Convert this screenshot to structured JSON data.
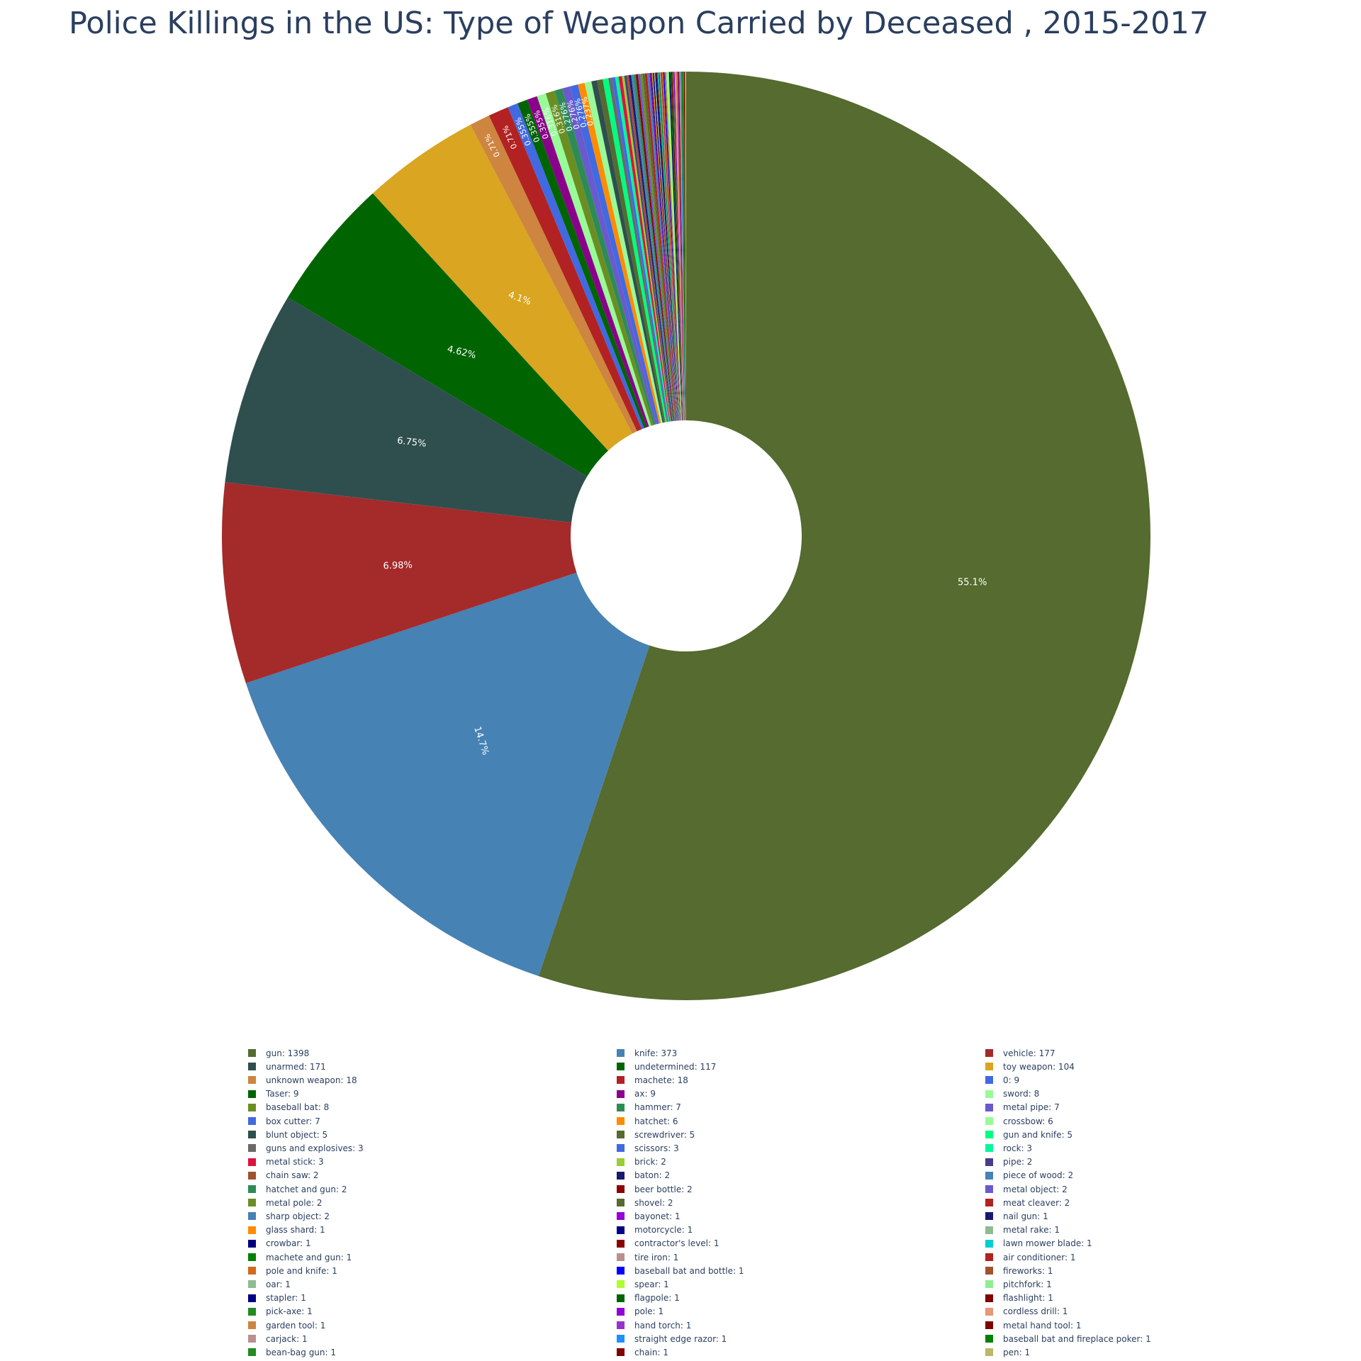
{
  "chart_data": {
    "type": "pie",
    "hole": true,
    "title": "Police Killings in the US: Type of Weapon Carried by Deceased , 2015-2017",
    "legend_position": "bottom",
    "slices": [
      {
        "label": "gun",
        "value": 1398,
        "color": "#556b2f",
        "pct_label": "55.1%"
      },
      {
        "label": "knife",
        "value": 373,
        "color": "#4682b4",
        "pct_label": "14.7%"
      },
      {
        "label": "vehicle",
        "value": 177,
        "color": "#a52a2a",
        "pct_label": "6.98%"
      },
      {
        "label": "unarmed",
        "value": 171,
        "color": "#2f4f4f",
        "pct_label": "6.75%"
      },
      {
        "label": "undetermined",
        "value": 117,
        "color": "#006400",
        "pct_label": "4.62%"
      },
      {
        "label": "toy weapon",
        "value": 104,
        "color": "#daa520",
        "pct_label": "4.1%"
      },
      {
        "label": "unknown weapon",
        "value": 18,
        "color": "#cd853f",
        "pct_label": "0.71%"
      },
      {
        "label": "machete",
        "value": 18,
        "color": "#b22222",
        "pct_label": "0.71%"
      },
      {
        "label": "0",
        "value": 9,
        "color": "#4169e1",
        "pct_label": "0.355%"
      },
      {
        "label": "Taser",
        "value": 9,
        "color": "#006400",
        "pct_label": "0.355%"
      },
      {
        "label": "ax",
        "value": 9,
        "color": "#8b008b",
        "pct_label": "0.355%"
      },
      {
        "label": "sword",
        "value": 8,
        "color": "#98fb98",
        "pct_label": "0.316%"
      },
      {
        "label": "baseball bat",
        "value": 8,
        "color": "#6b8e23",
        "pct_label": "0.316%"
      },
      {
        "label": "hammer",
        "value": 7,
        "color": "#2e8b57",
        "pct_label": "0.276%"
      },
      {
        "label": "metal pipe",
        "value": 7,
        "color": "#6a5acd",
        "pct_label": "0.276%"
      },
      {
        "label": "box cutter",
        "value": 7,
        "color": "#4169e1",
        "pct_label": "0.276%"
      },
      {
        "label": "hatchet",
        "value": 6,
        "color": "#ff8c00",
        "pct_label": "0.237%"
      },
      {
        "label": "crossbow",
        "value": 6,
        "color": "#98fb98",
        "pct_label": ""
      },
      {
        "label": "blunt object",
        "value": 5,
        "color": "#2f4f4f",
        "pct_label": ""
      },
      {
        "label": "screwdriver",
        "value": 5,
        "color": "#556b2f",
        "pct_label": ""
      },
      {
        "label": "gun and knife",
        "value": 5,
        "color": "#00ff7f",
        "pct_label": ""
      },
      {
        "label": "guns and explosives",
        "value": 3,
        "color": "#696969",
        "pct_label": ""
      },
      {
        "label": "scissors",
        "value": 3,
        "color": "#4169e1",
        "pct_label": ""
      },
      {
        "label": "rock",
        "value": 3,
        "color": "#00fa9a",
        "pct_label": ""
      },
      {
        "label": "metal stick",
        "value": 3,
        "color": "#dc143c",
        "pct_label": ""
      },
      {
        "label": "brick",
        "value": 2,
        "color": "#9acd32",
        "pct_label": ""
      },
      {
        "label": "pipe",
        "value": 2,
        "color": "#483d8b",
        "pct_label": ""
      },
      {
        "label": "chain saw",
        "value": 2,
        "color": "#a0522d",
        "pct_label": ""
      },
      {
        "label": "baton",
        "value": 2,
        "color": "#191970",
        "pct_label": ""
      },
      {
        "label": "piece of wood",
        "value": 2,
        "color": "#4682b4",
        "pct_label": ""
      },
      {
        "label": "hatchet and gun",
        "value": 2,
        "color": "#2e8b57",
        "pct_label": ""
      },
      {
        "label": "beer bottle",
        "value": 2,
        "color": "#8b0000",
        "pct_label": ""
      },
      {
        "label": "metal object",
        "value": 2,
        "color": "#6a5acd",
        "pct_label": ""
      },
      {
        "label": "metal pole",
        "value": 2,
        "color": "#6b8e23",
        "pct_label": ""
      },
      {
        "label": "shovel",
        "value": 2,
        "color": "#556b2f",
        "pct_label": ""
      },
      {
        "label": "meat cleaver",
        "value": 2,
        "color": "#b22222",
        "pct_label": ""
      },
      {
        "label": "sharp object",
        "value": 2,
        "color": "#4682b4",
        "pct_label": ""
      },
      {
        "label": "bayonet",
        "value": 1,
        "color": "#9400d3",
        "pct_label": ""
      },
      {
        "label": "nail gun",
        "value": 1,
        "color": "#191970",
        "pct_label": ""
      },
      {
        "label": "glass shard",
        "value": 1,
        "color": "#ff8c00",
        "pct_label": ""
      },
      {
        "label": "motorcycle",
        "value": 1,
        "color": "#000080",
        "pct_label": ""
      },
      {
        "label": "metal rake",
        "value": 1,
        "color": "#8fbc8f",
        "pct_label": ""
      },
      {
        "label": "crowbar",
        "value": 1,
        "color": "#000080",
        "pct_label": ""
      },
      {
        "label": "contractor's level",
        "value": 1,
        "color": "#8b0000",
        "pct_label": ""
      },
      {
        "label": "lawn mower blade",
        "value": 1,
        "color": "#00ced1",
        "pct_label": ""
      },
      {
        "label": "machete and gun",
        "value": 1,
        "color": "#008000",
        "pct_label": ""
      },
      {
        "label": "tire iron",
        "value": 1,
        "color": "#bc8f8f",
        "pct_label": ""
      },
      {
        "label": "air conditioner",
        "value": 1,
        "color": "#b22222",
        "pct_label": ""
      },
      {
        "label": "pole and knife",
        "value": 1,
        "color": "#d2691e",
        "pct_label": ""
      },
      {
        "label": "baseball bat and bottle",
        "value": 1,
        "color": "#0000ff",
        "pct_label": ""
      },
      {
        "label": "fireworks",
        "value": 1,
        "color": "#a0522d",
        "pct_label": ""
      },
      {
        "label": "oar",
        "value": 1,
        "color": "#8fbc8f",
        "pct_label": ""
      },
      {
        "label": "spear",
        "value": 1,
        "color": "#adff2f",
        "pct_label": ""
      },
      {
        "label": "pitchfork",
        "value": 1,
        "color": "#90ee90",
        "pct_label": ""
      },
      {
        "label": "stapler",
        "value": 1,
        "color": "#000080",
        "pct_label": ""
      },
      {
        "label": "flagpole",
        "value": 1,
        "color": "#006400",
        "pct_label": ""
      },
      {
        "label": "flashlight",
        "value": 1,
        "color": "#800000",
        "pct_label": ""
      },
      {
        "label": "pick-axe",
        "value": 1,
        "color": "#228b22",
        "pct_label": ""
      },
      {
        "label": "pole",
        "value": 1,
        "color": "#9400d3",
        "pct_label": ""
      },
      {
        "label": "cordless drill",
        "value": 1,
        "color": "#e9967a",
        "pct_label": ""
      },
      {
        "label": "garden tool",
        "value": 1,
        "color": "#cd853f",
        "pct_label": ""
      },
      {
        "label": "hand torch",
        "value": 1,
        "color": "#9932cc",
        "pct_label": ""
      },
      {
        "label": "metal hand tool",
        "value": 1,
        "color": "#800000",
        "pct_label": ""
      },
      {
        "label": "carjack",
        "value": 1,
        "color": "#bc8f8f",
        "pct_label": ""
      },
      {
        "label": "straight edge razor",
        "value": 1,
        "color": "#1e90ff",
        "pct_label": ""
      },
      {
        "label": "baseball bat and fireplace poker",
        "value": 1,
        "color": "#008000",
        "pct_label": ""
      },
      {
        "label": "bean-bag gun",
        "value": 1,
        "color": "#228b22",
        "pct_label": ""
      },
      {
        "label": "chain",
        "value": 1,
        "color": "#800000",
        "pct_label": ""
      },
      {
        "label": "pen",
        "value": 1,
        "color": "#bdb76b",
        "pct_label": ""
      }
    ]
  }
}
